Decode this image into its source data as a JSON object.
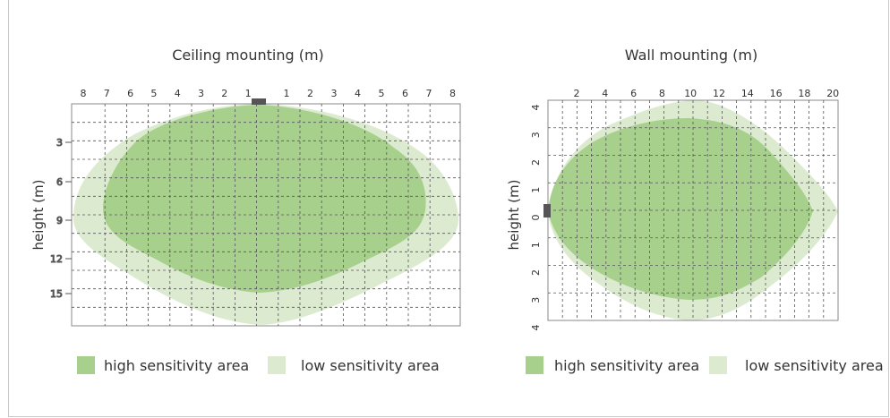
{
  "colors": {
    "high": "#a8d08d",
    "low": "#dcebd0",
    "sensor": "#555555"
  },
  "legend": {
    "high_label": "high sensitivity area",
    "low_label": "low sensitivity area"
  },
  "ceiling": {
    "title": "Ceiling mounting (m)",
    "ylabel": "height (m)",
    "x_ticks": [
      "8",
      "7",
      "6",
      "5",
      "4",
      "3",
      "2",
      "1",
      "1",
      "2",
      "3",
      "4",
      "5",
      "6",
      "7",
      "8"
    ],
    "y_ticks": [
      "3",
      "6",
      "9",
      "12",
      "15"
    ]
  },
  "wall": {
    "title": "Wall mounting (m)",
    "ylabel": "height (m)",
    "x_ticks": [
      "2",
      "4",
      "6",
      "8",
      "10",
      "12",
      "14",
      "16",
      "18",
      "20"
    ],
    "y_ticks": [
      "4",
      "3",
      "2",
      "1",
      "0",
      "1",
      "2",
      "3",
      "4"
    ]
  }
}
